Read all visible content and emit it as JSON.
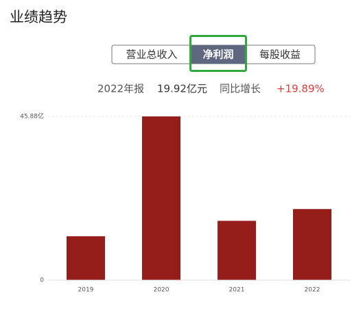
{
  "header": {
    "title": "业绩趋势"
  },
  "tabs": [
    "营业总收入",
    "净利润",
    "每股收益"
  ],
  "active_tab": 1,
  "summary": {
    "period": "2022年报",
    "amount": "19.92亿元",
    "growth_label": "同比增长",
    "growth": "+19.89%"
  },
  "chart_data": {
    "type": "bar",
    "categories": [
      "2019",
      "2020",
      "2021",
      "2022"
    ],
    "values": [
      12.3,
      45.88,
      16.62,
      19.92
    ],
    "color": "#951e1a",
    "ylim": [
      0,
      45.88
    ],
    "yticks": [
      0,
      {
        "value": 45.88,
        "label": "45.88亿"
      }
    ],
    "grid": true
  }
}
